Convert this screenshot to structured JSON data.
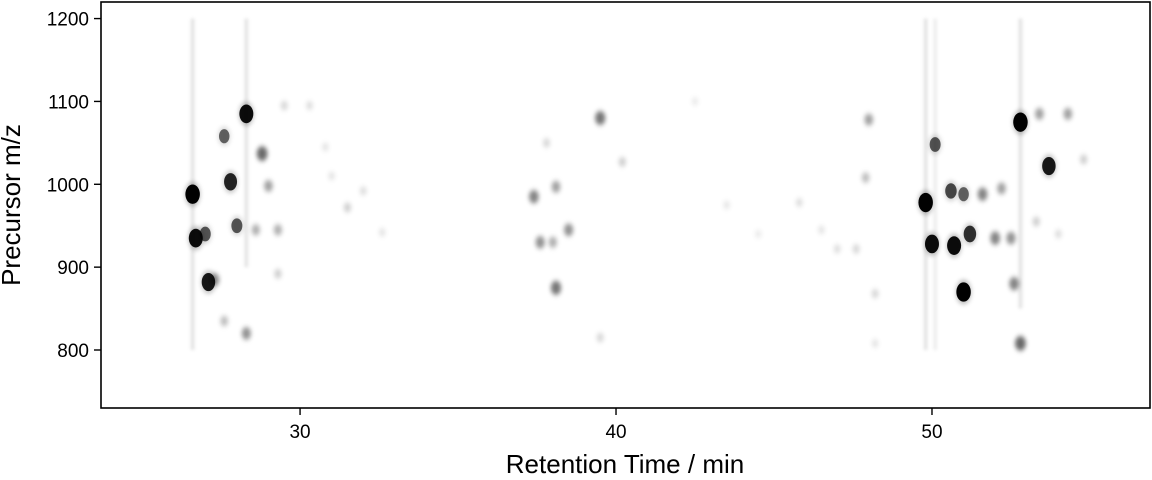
{
  "chart_data": {
    "type": "scatter",
    "title": "",
    "xlabel": "Retention Time / min",
    "ylabel": "Precursor m/z",
    "xlim": [
      23.7,
      56.9
    ],
    "ylim": [
      730,
      1220
    ],
    "xticks": [
      30,
      40,
      50
    ],
    "yticks": [
      800,
      900,
      1000,
      1100,
      1200
    ],
    "grid": false,
    "legend": "none",
    "colormap": "greyscale (white = low, black = high intensity)",
    "spots": [
      {
        "rt": 26.6,
        "mz": 988,
        "intensity": 0.95,
        "streak": [
          800,
          1200
        ]
      },
      {
        "rt": 26.7,
        "mz": 935,
        "intensity": 0.9
      },
      {
        "rt": 27.0,
        "mz": 940,
        "intensity": 0.6
      },
      {
        "rt": 27.1,
        "mz": 882,
        "intensity": 0.85
      },
      {
        "rt": 27.3,
        "mz": 885,
        "intensity": 0.35
      },
      {
        "rt": 27.6,
        "mz": 1058,
        "intensity": 0.55
      },
      {
        "rt": 27.6,
        "mz": 835,
        "intensity": 0.2
      },
      {
        "rt": 27.8,
        "mz": 1003,
        "intensity": 0.8
      },
      {
        "rt": 28.0,
        "mz": 950,
        "intensity": 0.6
      },
      {
        "rt": 28.3,
        "mz": 1085,
        "intensity": 0.9,
        "streak": [
          900,
          1200
        ]
      },
      {
        "rt": 28.3,
        "mz": 820,
        "intensity": 0.35
      },
      {
        "rt": 28.8,
        "mz": 1037,
        "intensity": 0.5
      },
      {
        "rt": 29.0,
        "mz": 998,
        "intensity": 0.3
      },
      {
        "rt": 28.6,
        "mz": 945,
        "intensity": 0.25
      },
      {
        "rt": 29.3,
        "mz": 945,
        "intensity": 0.25
      },
      {
        "rt": 29.3,
        "mz": 892,
        "intensity": 0.15
      },
      {
        "rt": 29.5,
        "mz": 1095,
        "intensity": 0.12
      },
      {
        "rt": 30.3,
        "mz": 1095,
        "intensity": 0.1
      },
      {
        "rt": 30.8,
        "mz": 1045,
        "intensity": 0.08
      },
      {
        "rt": 31.0,
        "mz": 1010,
        "intensity": 0.08
      },
      {
        "rt": 31.5,
        "mz": 972,
        "intensity": 0.15
      },
      {
        "rt": 32.0,
        "mz": 992,
        "intensity": 0.1
      },
      {
        "rt": 32.6,
        "mz": 942,
        "intensity": 0.08
      },
      {
        "rt": 37.4,
        "mz": 985,
        "intensity": 0.4
      },
      {
        "rt": 37.6,
        "mz": 930,
        "intensity": 0.35
      },
      {
        "rt": 37.8,
        "mz": 1050,
        "intensity": 0.12
      },
      {
        "rt": 38.0,
        "mz": 930,
        "intensity": 0.25
      },
      {
        "rt": 38.1,
        "mz": 997,
        "intensity": 0.3
      },
      {
        "rt": 38.1,
        "mz": 875,
        "intensity": 0.45
      },
      {
        "rt": 38.5,
        "mz": 945,
        "intensity": 0.35
      },
      {
        "rt": 39.5,
        "mz": 1080,
        "intensity": 0.45
      },
      {
        "rt": 39.5,
        "mz": 815,
        "intensity": 0.12
      },
      {
        "rt": 40.2,
        "mz": 1027,
        "intensity": 0.15
      },
      {
        "rt": 42.5,
        "mz": 1100,
        "intensity": 0.06
      },
      {
        "rt": 43.5,
        "mz": 975,
        "intensity": 0.07
      },
      {
        "rt": 44.5,
        "mz": 940,
        "intensity": 0.06
      },
      {
        "rt": 45.8,
        "mz": 978,
        "intensity": 0.1
      },
      {
        "rt": 46.5,
        "mz": 945,
        "intensity": 0.08
      },
      {
        "rt": 47.0,
        "mz": 922,
        "intensity": 0.1
      },
      {
        "rt": 47.6,
        "mz": 922,
        "intensity": 0.12
      },
      {
        "rt": 48.0,
        "mz": 1078,
        "intensity": 0.3
      },
      {
        "rt": 47.9,
        "mz": 1008,
        "intensity": 0.2
      },
      {
        "rt": 48.2,
        "mz": 868,
        "intensity": 0.12
      },
      {
        "rt": 48.2,
        "mz": 808,
        "intensity": 0.08
      },
      {
        "rt": 49.8,
        "mz": 978,
        "intensity": 0.95,
        "streak": [
          800,
          1200
        ]
      },
      {
        "rt": 50.0,
        "mz": 928,
        "intensity": 0.9
      },
      {
        "rt": 50.1,
        "mz": 1048,
        "intensity": 0.6,
        "streak": [
          800,
          1200
        ]
      },
      {
        "rt": 50.6,
        "mz": 992,
        "intensity": 0.65
      },
      {
        "rt": 50.7,
        "mz": 926,
        "intensity": 0.9
      },
      {
        "rt": 51.0,
        "mz": 870,
        "intensity": 0.95
      },
      {
        "rt": 51.0,
        "mz": 988,
        "intensity": 0.55
      },
      {
        "rt": 51.2,
        "mz": 940,
        "intensity": 0.75
      },
      {
        "rt": 51.6,
        "mz": 988,
        "intensity": 0.4
      },
      {
        "rt": 52.0,
        "mz": 935,
        "intensity": 0.4
      },
      {
        "rt": 52.5,
        "mz": 935,
        "intensity": 0.35
      },
      {
        "rt": 52.6,
        "mz": 880,
        "intensity": 0.4
      },
      {
        "rt": 52.2,
        "mz": 995,
        "intensity": 0.3
      },
      {
        "rt": 52.8,
        "mz": 1075,
        "intensity": 0.95,
        "streak": [
          850,
          1200
        ]
      },
      {
        "rt": 52.8,
        "mz": 808,
        "intensity": 0.5
      },
      {
        "rt": 53.4,
        "mz": 1085,
        "intensity": 0.3
      },
      {
        "rt": 53.7,
        "mz": 1022,
        "intensity": 0.85
      },
      {
        "rt": 54.3,
        "mz": 1085,
        "intensity": 0.3
      },
      {
        "rt": 54.8,
        "mz": 1030,
        "intensity": 0.15
      },
      {
        "rt": 53.3,
        "mz": 955,
        "intensity": 0.15
      },
      {
        "rt": 54.0,
        "mz": 940,
        "intensity": 0.1
      }
    ]
  }
}
